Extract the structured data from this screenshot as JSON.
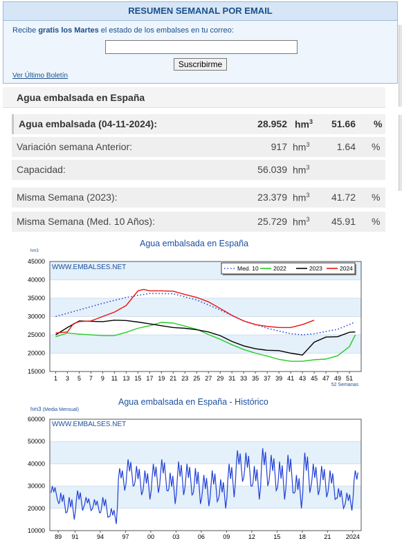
{
  "email": {
    "header": "RESUMEN SEMANAL POR EMAIL",
    "desc_prefix": "Recibe",
    "desc_bold": "gratis los Martes",
    "desc_suffix": "el estado de los embalses en tu correo:",
    "input_value": "",
    "subscribe_label": "Suscribirme",
    "last_bulletin_link": "Ver Último Boletín"
  },
  "stats": {
    "title": "Agua embalsada en España",
    "rows": [
      {
        "label": "Agua embalsada (04-11-2024):",
        "value": "28.952",
        "unit": "hm",
        "unit_sup": "3",
        "pct": "51.66",
        "pct_sign": "%"
      },
      {
        "label": "Variación semana Anterior:",
        "value": "917",
        "unit": "hm",
        "unit_sup": "3",
        "pct": "1.64",
        "pct_sign": "%"
      },
      {
        "label": "Capacidad:",
        "value": "56.039",
        "unit": "hm",
        "unit_sup": "3",
        "pct": "",
        "pct_sign": ""
      },
      {
        "label": "Misma Semana (2023):",
        "value": "23.379",
        "unit": "hm",
        "unit_sup": "3",
        "pct": "41.72",
        "pct_sign": "%"
      },
      {
        "label": "Misma Semana (Med. 10 Años):",
        "value": "25.729",
        "unit": "hm",
        "unit_sup": "3",
        "pct": "45.91",
        "pct_sign": "%"
      }
    ]
  },
  "chart_data": [
    {
      "type": "line",
      "title": "Agua embalsada en España",
      "ylabel": "hm3",
      "watermark": "WWW.EMBALSES.NET",
      "xlabel_note": "52 Semanas",
      "ylim": [
        15000,
        45000
      ],
      "yticks": [
        15000,
        20000,
        25000,
        30000,
        35000,
        40000,
        45000
      ],
      "xlim": [
        0,
        53
      ],
      "xticks": [
        1,
        3,
        5,
        7,
        9,
        11,
        13,
        15,
        17,
        19,
        21,
        23,
        25,
        27,
        29,
        31,
        33,
        35,
        37,
        39,
        41,
        43,
        45,
        47,
        49,
        51
      ],
      "grid": "horizontal bands",
      "legend_position": "top-right",
      "series": [
        {
          "name": "Med. 10",
          "color": "#1f3fd6",
          "dash": "dotted",
          "x": [
            1,
            5,
            9,
            13,
            17,
            21,
            25,
            29,
            33,
            37,
            41,
            43,
            45,
            49,
            52
          ],
          "y": [
            30000,
            31800,
            33600,
            35200,
            36300,
            36200,
            34500,
            31800,
            28800,
            26800,
            25300,
            25000,
            25300,
            26500,
            28500
          ]
        },
        {
          "name": "2022",
          "color": "#22cc22",
          "dash": "solid",
          "x": [
            1,
            3,
            5,
            9,
            11,
            13,
            15,
            17,
            19,
            21,
            23,
            25,
            27,
            29,
            31,
            33,
            35,
            37,
            39,
            41,
            43,
            45,
            47,
            49,
            51,
            52
          ],
          "y": [
            24500,
            25500,
            25200,
            24800,
            24800,
            25700,
            26800,
            27500,
            28400,
            28200,
            27400,
            26500,
            25100,
            23800,
            22300,
            21000,
            20000,
            19200,
            18300,
            17800,
            17800,
            18200,
            18400,
            19300,
            21800,
            25000
          ]
        },
        {
          "name": "2023",
          "color": "#000000",
          "dash": "solid",
          "x": [
            1,
            3,
            5,
            9,
            11,
            13,
            15,
            17,
            19,
            21,
            23,
            25,
            27,
            29,
            31,
            33,
            35,
            37,
            39,
            41,
            43,
            45,
            47,
            49,
            51,
            52
          ],
          "y": [
            25000,
            27000,
            28800,
            28600,
            29000,
            28900,
            28500,
            28000,
            27500,
            27000,
            26800,
            26400,
            25800,
            24800,
            23200,
            22000,
            21200,
            20800,
            20700,
            20000,
            19500,
            23000,
            24400,
            24500,
            25700,
            25800
          ]
        },
        {
          "name": "2024",
          "color": "#e81010",
          "dash": "solid",
          "x": [
            1,
            3,
            4,
            5,
            7,
            9,
            11,
            13,
            15,
            16,
            17,
            19,
            21,
            23,
            25,
            27,
            29,
            31,
            33,
            35,
            37,
            39,
            41,
            43,
            45
          ],
          "y": [
            25500,
            25800,
            28000,
            28600,
            28800,
            30000,
            31200,
            33000,
            37000,
            37400,
            37000,
            37000,
            36900,
            36000,
            35200,
            34000,
            32200,
            30300,
            28800,
            27800,
            27300,
            27000,
            27000,
            27800,
            29000
          ]
        }
      ]
    },
    {
      "type": "line",
      "title": "Agua embalsada en España - Histórico",
      "ylabel": "hm3",
      "ylabel_note": "(Media Mensual)",
      "watermark": "WWW.EMBALSES.NET",
      "ylim": [
        10000,
        60000
      ],
      "yticks": [
        10000,
        20000,
        30000,
        40000,
        50000,
        60000
      ],
      "xlim": [
        1988,
        2025
      ],
      "xticks": [
        "89",
        "91",
        "94",
        "97",
        "00",
        "03",
        "06",
        "09",
        "12",
        "15",
        "18",
        "21",
        "2024"
      ],
      "xtick_years": [
        1989,
        1991,
        1994,
        1997,
        2000,
        2003,
        2006,
        2009,
        2012,
        2015,
        2018,
        2021,
        2024
      ],
      "grid": "horizontal bands",
      "series": [
        {
          "name": "",
          "color": "#1f3fd6",
          "dash": "solid",
          "peaks_x": [
            1988.3,
            1989.3,
            1990.3,
            1991.3,
            1992.3,
            1993.3,
            1994.3,
            1995.3,
            1996.3,
            1997.3,
            1998.3,
            1999.3,
            2000.3,
            2001.3,
            2002.3,
            2003.3,
            2004.3,
            2005.3,
            2006.3,
            2007.3,
            2008.3,
            2009.3,
            2010.3,
            2011.3,
            2012.3,
            2013.3,
            2014.3,
            2015.3,
            2016.3,
            2017.3,
            2018.3,
            2019.3,
            2020.3,
            2021.3,
            2022.3,
            2023.3,
            2024.3
          ],
          "peaks_y": [
            30000,
            27000,
            25000,
            28000,
            25000,
            24000,
            25000,
            20000,
            38000,
            42000,
            39000,
            37000,
            40000,
            42000,
            36000,
            41000,
            40000,
            38000,
            35000,
            37000,
            33000,
            40000,
            46000,
            45000,
            39000,
            47000,
            44000,
            41000,
            44000,
            35000,
            45000,
            40000,
            39000,
            37000,
            29000,
            27000,
            37000
          ],
          "troughs_y": [
            24000,
            18000,
            15000,
            19000,
            19000,
            18000,
            16000,
            13000,
            28000,
            30000,
            26000,
            24000,
            27000,
            28000,
            22000,
            26000,
            26000,
            22000,
            21000,
            23000,
            20000,
            25000,
            32000,
            30000,
            24000,
            30000,
            28000,
            24000,
            27000,
            20000,
            27000,
            26000,
            25000,
            24000,
            20000,
            19000,
            28000
          ]
        }
      ]
    }
  ]
}
